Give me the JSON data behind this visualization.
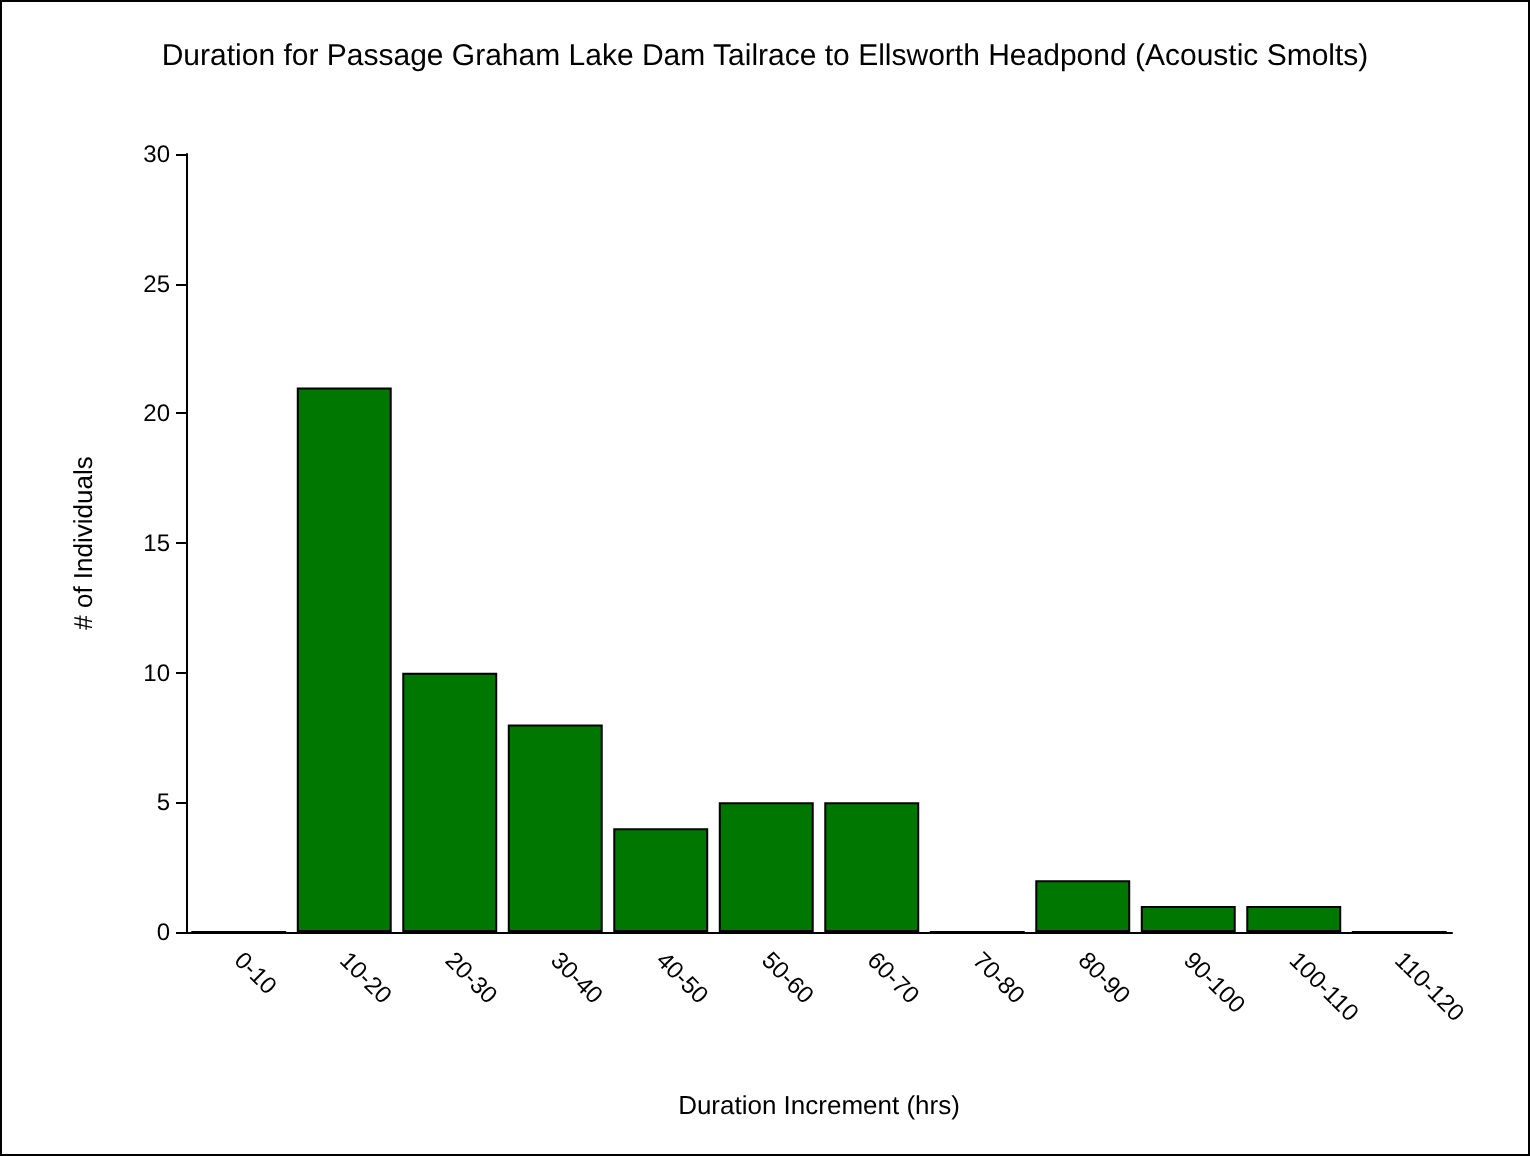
{
  "chart_data": {
    "type": "bar",
    "title": "Duration for Passage Graham Lake Dam Tailrace to Ellsworth Headpond (Acoustic Smolts)",
    "xlabel": "Duration Increment (hrs)",
    "ylabel": "# of Individuals",
    "categories": [
      "0-10",
      "10-20",
      "20-30",
      "30-40",
      "40-50",
      "50-60",
      "60-70",
      "70-80",
      "80-90",
      "90-100",
      "100-110",
      "110-120"
    ],
    "values": [
      0,
      21,
      10,
      8,
      4,
      5,
      5,
      0,
      2,
      1,
      1,
      0
    ],
    "color": "#007700",
    "ylim": [
      0,
      30
    ],
    "yticks": [
      0,
      5,
      10,
      15,
      20,
      25,
      30
    ]
  }
}
